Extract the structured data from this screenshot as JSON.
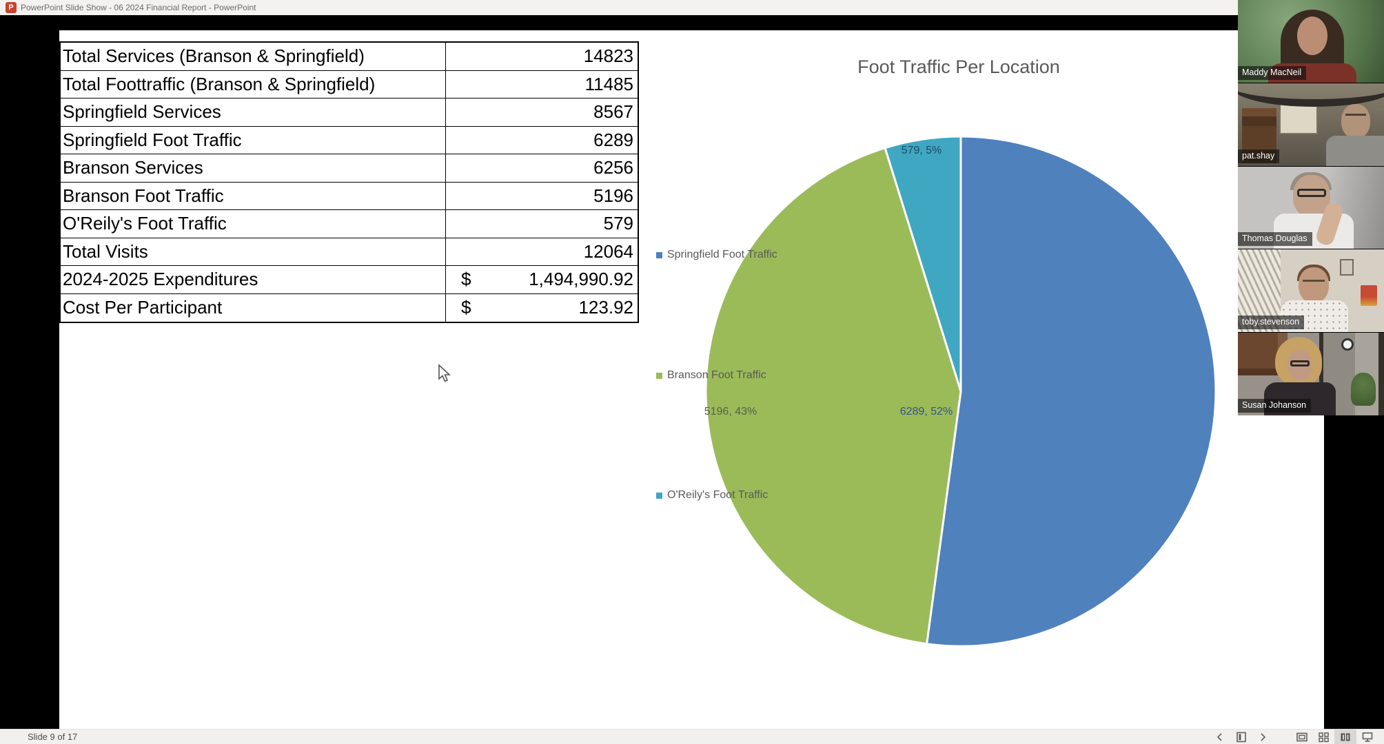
{
  "window": {
    "app_icon": "powerpoint-icon",
    "app_icon_letter": "P",
    "title": "PowerPoint Slide Show - 06 2024 Financial Report - PowerPoint"
  },
  "slide": {
    "table": {
      "rows": [
        {
          "label": "Total Services (Branson & Springfield)",
          "prefix": "",
          "value": "14823"
        },
        {
          "label": "Total Foottraffic (Branson & Springfield)",
          "prefix": "",
          "value": "11485"
        },
        {
          "label": "Springfield Services",
          "prefix": "",
          "value": "8567"
        },
        {
          "label": "Springfield Foot Traffic",
          "prefix": "",
          "value": "6289"
        },
        {
          "label": "Branson Services",
          "prefix": "",
          "value": "6256"
        },
        {
          "label": "Branson Foot Traffic",
          "prefix": "",
          "value": "5196"
        },
        {
          "label": "O'Reily's Foot Traffic",
          "prefix": "",
          "value": "579"
        },
        {
          "label": "Total Visits",
          "prefix": "",
          "value": "12064"
        },
        {
          "label": "2024-2025 Expenditures",
          "prefix": "$",
          "value": "1,494,990.92"
        },
        {
          "label": "Cost Per Participant",
          "prefix": "$",
          "value": "123.92"
        }
      ]
    }
  },
  "chart_data": {
    "type": "pie",
    "title": "Foot Traffic Per Location",
    "total": 12064,
    "legend_position": "left",
    "start_angle": "12-oclock",
    "direction": "clockwise",
    "series": [
      {
        "name": "Springfield Foot Traffic",
        "value": 6289,
        "percent": 52,
        "data_label": "6289, 52%",
        "color": "#4f81bd",
        "label_color": "#31538f"
      },
      {
        "name": "Branson Foot Traffic",
        "value": 5196,
        "percent": 43,
        "data_label": "5196, 43%",
        "color": "#9bbb59",
        "label_color": "#55604a"
      },
      {
        "name": "O'Reily's Foot Traffic",
        "value": 579,
        "percent": 5,
        "data_label": "579, 5%",
        "color": "#3fa7c1",
        "label_color": "#1d4a66"
      }
    ]
  },
  "video_panel": {
    "participants": [
      {
        "name": "Maddy MacNeil"
      },
      {
        "name": "pat.shay"
      },
      {
        "name": "Thomas Douglas"
      },
      {
        "name": "toby.stevenson"
      },
      {
        "name": "Susan Johanson"
      }
    ]
  },
  "status_bar": {
    "slide_indicator": "Slide 9 of 17",
    "icons": [
      {
        "name": "chevron-left-icon"
      },
      {
        "name": "slide-icon"
      },
      {
        "name": "chevron-right-icon"
      },
      {
        "name": "normal-view-icon"
      },
      {
        "name": "slide-sorter-icon"
      },
      {
        "name": "reading-view-icon",
        "selected": true
      },
      {
        "name": "slideshow-view-icon"
      }
    ]
  }
}
